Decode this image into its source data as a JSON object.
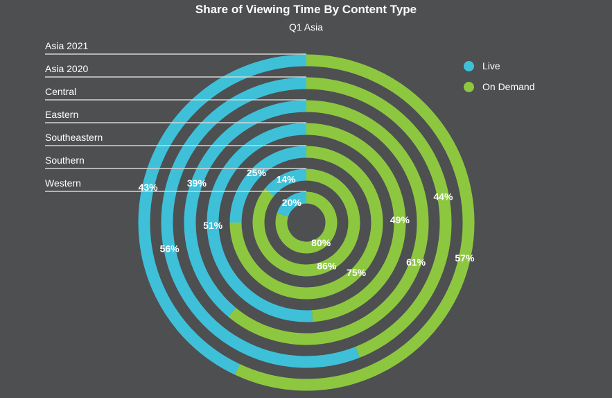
{
  "title": "Share of Viewing Time By Content Type",
  "subtitle": "Q1 Asia",
  "colors": {
    "background": "#4d4f51",
    "live": "#3ec0d9",
    "on_demand": "#8dc740",
    "text": "#ffffff"
  },
  "legend": {
    "placement": "top-right",
    "items": [
      {
        "label": "Live",
        "color": "#3ec0d9"
      },
      {
        "label": "On Demand",
        "color": "#8dc740"
      }
    ]
  },
  "chart_data": {
    "type": "radial-bar",
    "series_names": [
      "Live",
      "On Demand"
    ],
    "categories": [
      "Asia 2021",
      "Asia 2020",
      "Central",
      "Eastern",
      "Southeastern",
      "Southern",
      "Western"
    ],
    "rings": [
      {
        "name": "Asia 2021",
        "live": 43,
        "on_demand": 57,
        "live_label": "43%",
        "on_demand_label": "57%"
      },
      {
        "name": "Asia 2020",
        "live": 56,
        "on_demand": 44,
        "live_label": "56%",
        "on_demand_label": "44%"
      },
      {
        "name": "Central",
        "live": 39,
        "on_demand": 61,
        "live_label": "39%",
        "on_demand_label": "61%"
      },
      {
        "name": "Eastern",
        "live": 51,
        "on_demand": 49,
        "live_label": "51%",
        "on_demand_label": "49%"
      },
      {
        "name": "Southeastern",
        "live": 25,
        "on_demand": 75,
        "live_label": "25%",
        "on_demand_label": "75%"
      },
      {
        "name": "Southern",
        "live": 14,
        "on_demand": 86,
        "live_label": "14%",
        "on_demand_label": "86%"
      },
      {
        "name": "Western",
        "live": 20,
        "on_demand": 80,
        "live_label": "20%",
        "on_demand_label": "80%"
      }
    ]
  }
}
